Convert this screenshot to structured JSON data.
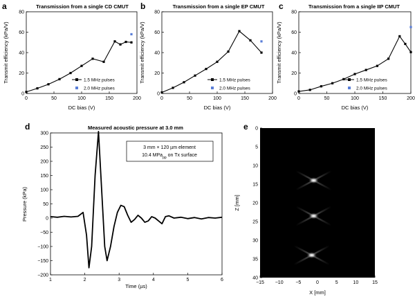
{
  "chart_data": [
    {
      "panel": "a",
      "type": "line",
      "title": "Transmission from a single CD CMUT",
      "xlabel": "DC bias (V)",
      "ylabel": "Transmit efficiency (kPa/V)",
      "xlim": [
        0,
        200
      ],
      "ylim": [
        0,
        80
      ],
      "xticks": [
        0,
        50,
        100,
        150,
        200
      ],
      "yticks": [
        0,
        20,
        40,
        60,
        80
      ],
      "legend_position": "lower-right",
      "series": [
        {
          "name": "1.5 MHz pulses",
          "color": "#000000",
          "marker": "square",
          "x": [
            0,
            20,
            40,
            60,
            80,
            100,
            120,
            140,
            160,
            170,
            180,
            190
          ],
          "y": [
            1.5,
            5,
            9,
            14,
            20,
            27,
            34,
            31,
            51,
            48,
            50.5,
            50
          ]
        },
        {
          "name": "2.0 MHz pulses",
          "color": "#5b7fd8",
          "marker": "square",
          "x": [
            190
          ],
          "y": [
            58
          ]
        }
      ]
    },
    {
      "panel": "b",
      "type": "line",
      "title": "Transmission from a single EP CMUT",
      "xlabel": "DC bias (V)",
      "ylabel": "Transmit efficiency (kPa/V)",
      "xlim": [
        0,
        200
      ],
      "ylim": [
        0,
        80
      ],
      "xticks": [
        0,
        50,
        100,
        150,
        200
      ],
      "yticks": [
        0,
        20,
        40,
        60,
        80
      ],
      "legend_position": "lower-right",
      "series": [
        {
          "name": "1.5 MHz pulses",
          "color": "#000000",
          "marker": "square",
          "x": [
            0,
            20,
            40,
            60,
            80,
            100,
            120,
            140,
            160,
            180
          ],
          "y": [
            1,
            5.5,
            11,
            17.5,
            24,
            31,
            41,
            61,
            52,
            40
          ]
        },
        {
          "name": "2.0 MHz pulses",
          "color": "#5b7fd8",
          "marker": "square",
          "x": [
            180
          ],
          "y": [
            51
          ]
        }
      ]
    },
    {
      "panel": "c",
      "type": "line",
      "title": "Transmission from a single IIP CMUT",
      "xlabel": "DC bias (V)",
      "ylabel": "Transmit efficiency (kPa/V)",
      "xlim": [
        0,
        200
      ],
      "ylim": [
        0,
        80
      ],
      "xticks": [
        0,
        50,
        100,
        150,
        200
      ],
      "yticks": [
        0,
        20,
        40,
        60,
        80
      ],
      "legend_position": "lower-right",
      "series": [
        {
          "name": "1.5 MHz pulses",
          "color": "#000000",
          "marker": "square",
          "x": [
            0,
            20,
            40,
            60,
            80,
            100,
            120,
            140,
            160,
            180,
            190,
            200
          ],
          "y": [
            2,
            3.5,
            7,
            10,
            14,
            19,
            23,
            27,
            34,
            56,
            48.5,
            40.5
          ]
        },
        {
          "name": "2.0 MHz pulses",
          "color": "#5b7fd8",
          "marker": "square",
          "x": [
            200
          ],
          "y": [
            65
          ]
        }
      ]
    },
    {
      "panel": "d",
      "type": "line",
      "title": "Measured acoustic pressure at 3.0 mm",
      "xlabel": "Time (µs)",
      "ylabel": "Pressure (kPa)",
      "xlim": [
        1,
        6
      ],
      "ylim": [
        -200,
        300
      ],
      "xticks": [
        1,
        2,
        3,
        4,
        5,
        6
      ],
      "yticks": [
        -200,
        -150,
        -100,
        -50,
        0,
        50,
        100,
        150,
        200,
        250,
        300
      ],
      "annotation_line1": "3 mm × 120 µm element",
      "annotation_line2_main": "10.4 MPa",
      "annotation_line2_sub": "pp",
      "annotation_line2_rest": " on Tx surface",
      "series": [
        {
          "color": "#000000",
          "x": [
            1.0,
            1.2,
            1.4,
            1.6,
            1.8,
            1.95,
            2.05,
            2.12,
            2.2,
            2.3,
            2.4,
            2.5,
            2.58,
            2.65,
            2.75,
            2.85,
            2.95,
            3.05,
            3.15,
            3.25,
            3.35,
            3.45,
            3.55,
            3.65,
            3.75,
            3.85,
            3.95,
            4.05,
            4.15,
            4.25,
            4.35,
            4.45,
            4.6,
            4.8,
            5.0,
            5.2,
            5.4,
            5.6,
            5.8,
            6.0
          ],
          "y": [
            5,
            3,
            6,
            4,
            6,
            20,
            -60,
            -175,
            -100,
            150,
            305,
            80,
            -100,
            -150,
            -100,
            -30,
            20,
            45,
            40,
            10,
            -15,
            -5,
            10,
            0,
            -15,
            -10,
            5,
            0,
            -10,
            -20,
            5,
            8,
            0,
            3,
            -2,
            2,
            -3,
            2,
            0,
            3
          ]
        }
      ]
    },
    {
      "panel": "e",
      "type": "heatmap",
      "xlabel": "X [mm]",
      "ylabel": "Z [mm]",
      "xlim": [
        -15,
        15
      ],
      "ylim": [
        0,
        40
      ],
      "xticks": [
        -15,
        -10,
        -5,
        0,
        5,
        10,
        15
      ],
      "yticks": [
        0,
        5,
        10,
        15,
        20,
        25,
        30,
        35,
        40
      ],
      "colormap": "gray",
      "y_axis_reversed": true,
      "point_targets": [
        {
          "x": -1,
          "z": 14
        },
        {
          "x": -1,
          "z": 23.5
        },
        {
          "x": -1.5,
          "z": 34
        }
      ]
    }
  ],
  "panel_labels": [
    "a",
    "b",
    "c",
    "d",
    "e"
  ]
}
